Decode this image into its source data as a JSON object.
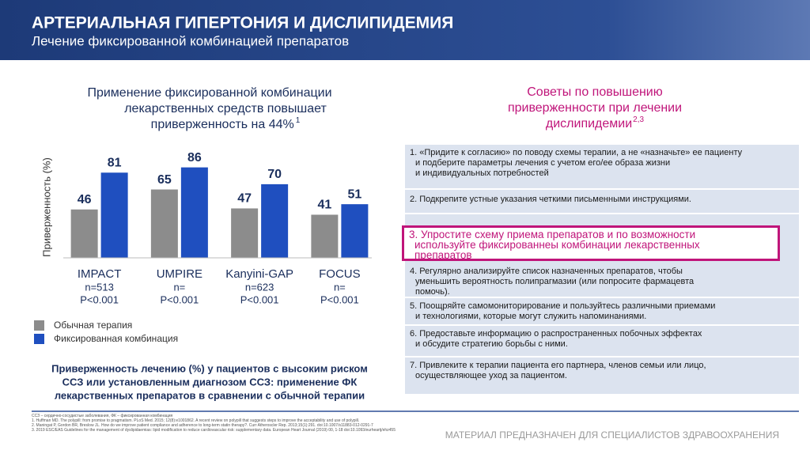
{
  "header": {
    "title": "АРТЕРИАЛЬНАЯ ГИПЕРТОНИЯ И ДИСЛИПИДЕМИЯ",
    "subtitle": "Лечение фиксированной комбинацией препаратов"
  },
  "chart_heading": {
    "lines": [
      "Применение фиксированной комбинации",
      "лекарственных средств повышает",
      "приверженность на 44%"
    ],
    "superscript": "1"
  },
  "chart_data": {
    "type": "bar",
    "y_label": "Приверженность (%)",
    "categories": [
      "IMPACT",
      "UMPIRE",
      "Kanyini-GAP",
      "FOCUS"
    ],
    "sublabels": [
      [
        "n=513",
        "P<0.001"
      ],
      [
        "n=",
        "P<0.001"
      ],
      [
        "n=623",
        "P<0.001"
      ],
      [
        "n=",
        "P<0.001"
      ]
    ],
    "series": [
      {
        "name": "Обычная терапия",
        "color": "#8c8c8c",
        "values": [
          46,
          65,
          47,
          41
        ]
      },
      {
        "name": "Фиксированная комбинация",
        "color": "#1f4fbf",
        "values": [
          81,
          86,
          70,
          51
        ]
      }
    ],
    "ylim": [
      0,
      100
    ]
  },
  "chart_note": {
    "lines": [
      "Приверженность лечению (%) у пациентов с высоким риском",
      "ССЗ или установленным диагнозом ССЗ: применение ФК",
      "лекарственных препаратов в сравнении с обычной терапии"
    ]
  },
  "tips": {
    "title_lines": [
      "Советы по повышению",
      "приверженности  при лечении",
      "дислипидемии"
    ],
    "superscript": "2,3",
    "items": [
      {
        "lines": [
          "1. «Придите к согласию» по поводу схемы терапии, а не «назначьте» ее пациенту",
          "и подберите параметры лечения с учетом его/ее образа жизни",
          "и индивидуальных потребностей"
        ]
      },
      {
        "lines": [
          "2. Подкрепите устные указания четкими письменными инструкциями."
        ]
      },
      {
        "lines": [
          "3. Упростите схему приема препаратов и по возможности",
          "используйте фиксированнеы комбинации лекарственных",
          "препаратов"
        ],
        "highlighted": true
      },
      {
        "lines": [
          "4. Регулярно анализируйте список назначенных препаратов, чтобы",
          "уменьшить вероятность полипрагмазии (или попросите фармацевта",
          "помочь)."
        ]
      },
      {
        "lines": [
          "5. Поощряйте самомониторирование и пользуйтесь различными приемами",
          "и технологиями, которые могут служить напоминаниями."
        ]
      },
      {
        "lines": [
          "6. Предоставьте информацию о распространенных побочных эффектах",
          "и обсудите стратегию борьбы с ними."
        ]
      },
      {
        "lines": [
          "7. Привлеките к терапии пациента его партнера, членов семьи или лицо,",
          "осуществляющее уход за пациентом."
        ]
      }
    ]
  },
  "footnotes": [
    "ССЗ – сердечно-сосудистые заболевания, ФК – фиксированная комбинация",
    "1. Huffman MD. The polypill: from promise to pragmatism. PLoS Med. 2015; 12(8):e1001862. A recent review on polypill that suggests steps to improve the acceptability and use of polypill.",
    "2. Maningat P, Gordon BR, Breslow JL. How do we improve patient compliance and adherence to long-term statin therapy?. Curr Atheroscler Rep. 2013;15(1):291. doi:10.1007/s11883-012-0291-7",
    "3. 2019 ESC/EAS Guidelines for the management of dyslipidaemias: lipid modification to reduce cardiovascular risk: supplementary data. European Heart Journal (2019) 00, 1-18 doi:10.1093/eurheartj/ehz455"
  ],
  "footer": "МАТЕРИАЛ ПРЕДНАЗНАЧЕН ДЛЯ СПЕЦИАЛИСТОВ ЗДРАВООХРАНЕНИЯ"
}
